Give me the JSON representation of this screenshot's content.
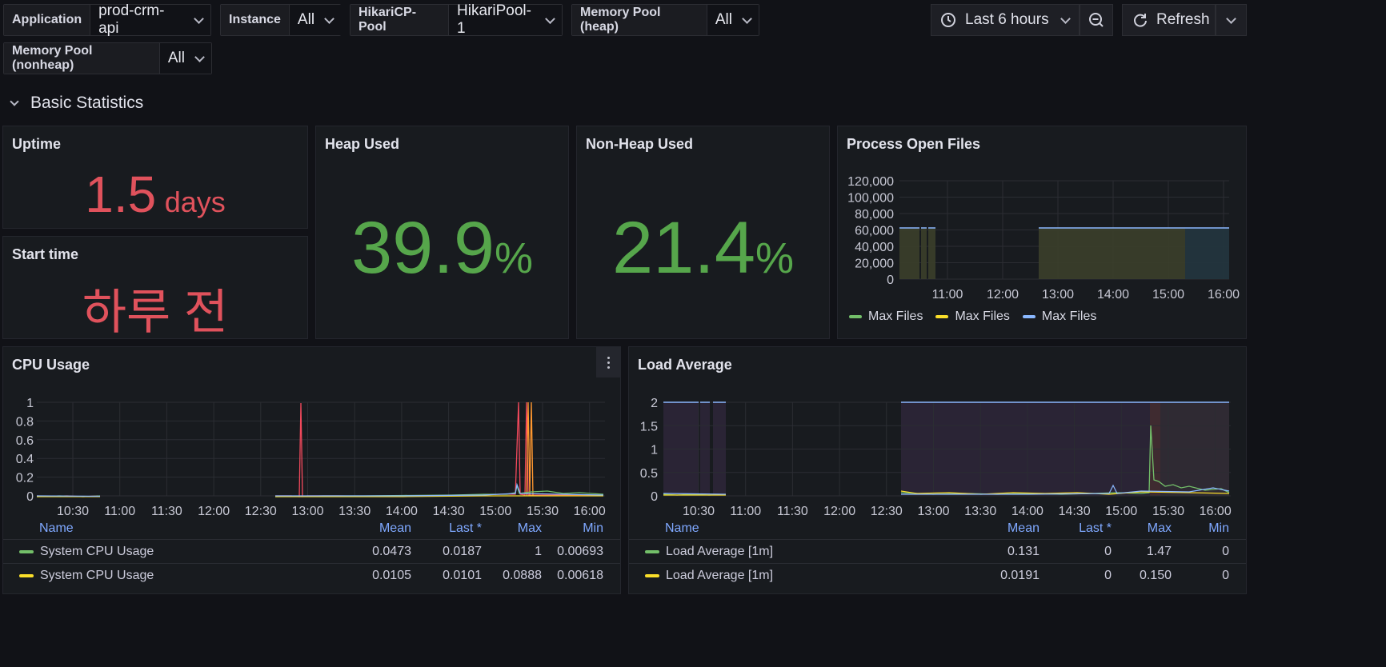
{
  "variables": [
    {
      "label": "Application",
      "value": "prod-crm-api"
    },
    {
      "label": "Instance",
      "value": "All"
    },
    {
      "label": "HikariCP-Pool",
      "value": "HikariPool-1"
    },
    {
      "label": "Memory Pool (heap)",
      "value": "All"
    },
    {
      "label": "Memory Pool (nonheap)",
      "value": "All"
    }
  ],
  "toolbar": {
    "time_range": "Last 6 hours",
    "refresh_label": "Refresh",
    "icons": {
      "clock": "clock-icon",
      "zoom": "zoom-out-icon",
      "refresh": "refresh-icon",
      "chevron": "chevron-down-icon"
    }
  },
  "row": {
    "title": "Basic Statistics"
  },
  "colors": {
    "red": "#e0525c",
    "green": "#56a64b",
    "s_green": "#73bf69",
    "s_yellow": "#fade2a",
    "s_blue": "#8ab8ff",
    "s_red": "#f2495c",
    "s_orange": "#ff9830"
  },
  "stats": {
    "uptime": {
      "title": "Uptime",
      "value": "1.5",
      "unit": "days"
    },
    "start": {
      "title": "Start time",
      "value": "하루 전"
    },
    "heap": {
      "title": "Heap Used",
      "value": "39.9",
      "unit": "%"
    },
    "nonheap": {
      "title": "Non-Heap Used",
      "value": "21.4",
      "unit": "%"
    }
  },
  "chart_data": [
    {
      "type": "area",
      "title": "Process Open Files",
      "x_ticks": [
        "11:00",
        "12:00",
        "13:00",
        "14:00",
        "15:00",
        "16:00"
      ],
      "y_ticks": [
        "120,000",
        "100,000",
        "80,000",
        "60,000",
        "40,000",
        "20,000",
        "0"
      ],
      "ylim": [
        0,
        120000
      ],
      "series": [
        {
          "name": "Max Files"
        },
        {
          "name": "Max Files"
        },
        {
          "name": "Max Files",
          "value": 65536
        }
      ],
      "legend": "bottom"
    },
    {
      "type": "line",
      "title": "CPU Usage",
      "x_ticks": [
        "10:30",
        "11:00",
        "11:30",
        "12:00",
        "12:30",
        "13:00",
        "13:30",
        "14:00",
        "14:30",
        "15:00",
        "15:30",
        "16:00"
      ],
      "y_ticks": [
        "1",
        "0.8",
        "0.6",
        "0.4",
        "0.2",
        "0"
      ],
      "ylim": [
        0,
        1
      ],
      "table": {
        "headers": [
          "Name",
          "Mean",
          "Last *",
          "Max",
          "Min"
        ],
        "rows": [
          {
            "name": "System CPU Usage",
            "mean": "0.0473",
            "last": "0.0187",
            "max": "1",
            "min": "0.00693"
          },
          {
            "name": "System CPU Usage",
            "mean": "0.0105",
            "last": "0.0101",
            "max": "0.0888",
            "min": "0.00618"
          }
        ]
      }
    },
    {
      "type": "line",
      "title": "Load Average",
      "x_ticks": [
        "10:30",
        "11:00",
        "11:30",
        "12:00",
        "12:30",
        "13:00",
        "13:30",
        "14:00",
        "14:30",
        "15:00",
        "15:30",
        "16:00"
      ],
      "y_ticks": [
        "2",
        "1.5",
        "1",
        "0.5",
        "0"
      ],
      "ylim": [
        0,
        2
      ],
      "table": {
        "headers": [
          "Name",
          "Mean",
          "Last *",
          "Max",
          "Min"
        ],
        "rows": [
          {
            "name": "Load Average [1m]",
            "mean": "0.131",
            "last": "0",
            "max": "1.47",
            "min": "0"
          },
          {
            "name": "Load Average [1m]",
            "mean": "0.0191",
            "last": "0",
            "max": "0.150",
            "min": "0"
          }
        ]
      }
    }
  ]
}
